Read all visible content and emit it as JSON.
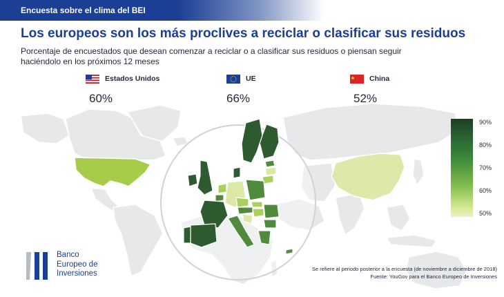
{
  "banner": {
    "text": "Encuesta sobre el clima del BEI"
  },
  "title": "Los europeos son los más proclives a reciclar o clasificar sus residuos",
  "subtitle": "Porcentaje de encuestados que desean comenzar a reciclar o a clasificar sus residuos o piensan seguir haciéndolo en los próximos 12 meses",
  "regions": [
    {
      "label": "Estados Unidos",
      "value": "60%",
      "icon": "us-flag-icon"
    },
    {
      "label": "UE",
      "value": "66%",
      "icon": "eu-flag-icon"
    },
    {
      "label": "China",
      "value": "52%",
      "icon": "china-flag-icon"
    }
  ],
  "map_values": {
    "us": 60,
    "eu": 66,
    "china": 52
  },
  "legend": {
    "ticks": [
      "90%",
      "80%",
      "70%",
      "60%",
      "50%"
    ]
  },
  "colors": {
    "brand": "#1b3f94",
    "land": "#e6e8ea",
    "us": "#a6cc4a",
    "china": "#dde9a9",
    "eu_dark": "#2e5a2f",
    "eu_mid": "#4f8a3d",
    "eu_light": "#a9cf5c",
    "eu_pale": "#dce9a6"
  },
  "logo": {
    "lines": [
      "Banco",
      "Europeo de",
      "Inversiones"
    ]
  },
  "footnotes": [
    "Se refiere al periodo posterior a la encuesta (de noviembre a diciembre de 2018)",
    "Fuente: YouGov para el Banco Europeo de Inversiones"
  ]
}
